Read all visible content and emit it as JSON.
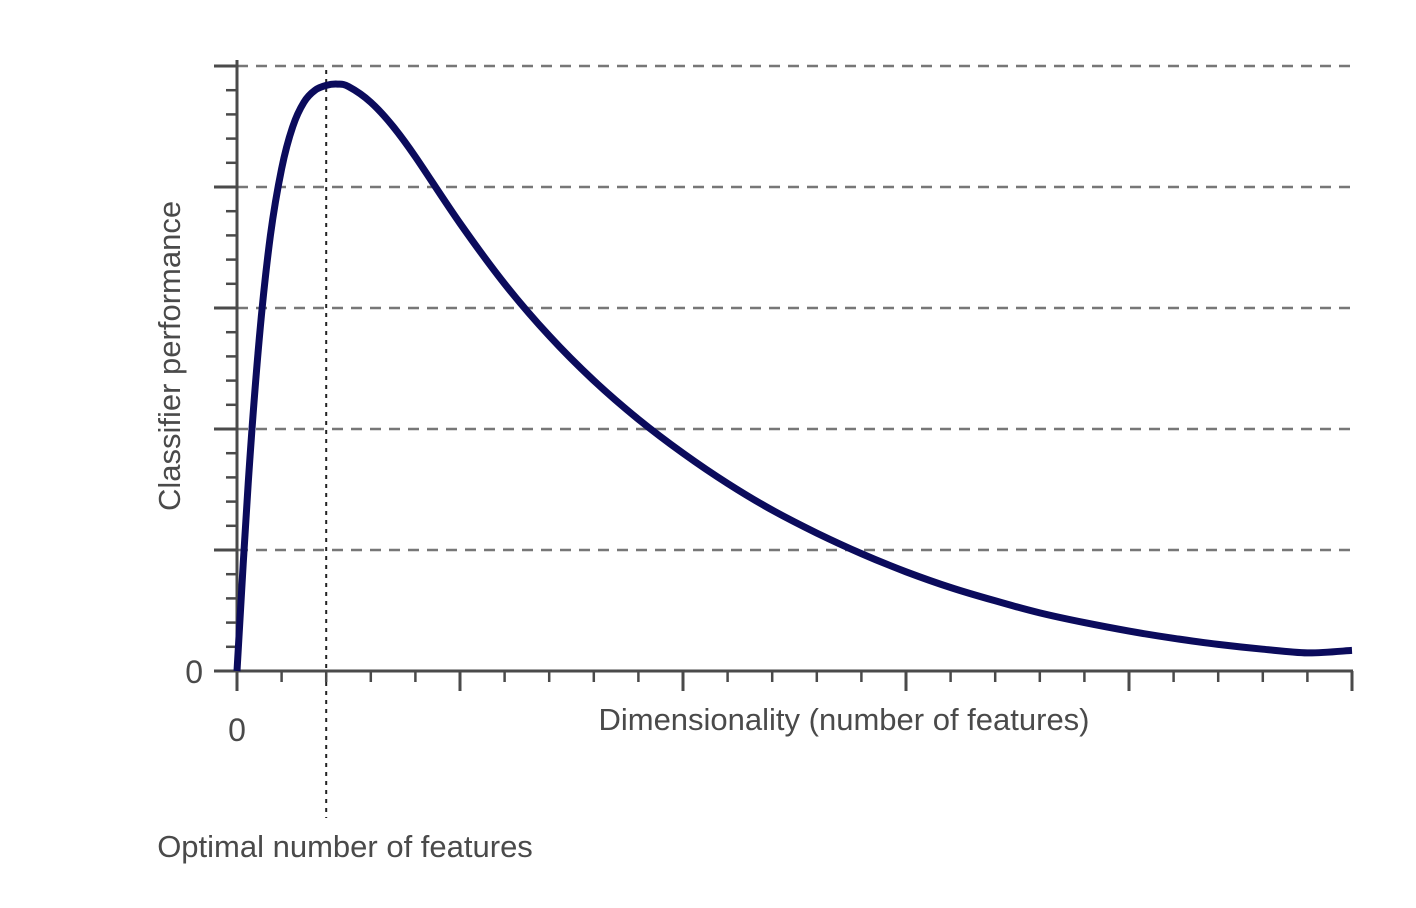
{
  "chart_data": {
    "type": "line",
    "title": "",
    "xlabel": "Dimensionality (number of features)",
    "ylabel": "Classifier performance",
    "xlim": [
      0,
      25
    ],
    "ylim": [
      0,
      5
    ],
    "x_tick_labels": [
      {
        "value": 0,
        "label": "0"
      }
    ],
    "y_tick_labels": [
      {
        "value": 0,
        "label": "0"
      }
    ],
    "x_major_ticks": [
      0,
      5,
      10,
      15,
      20,
      25
    ],
    "x_minor_step": 1,
    "y_major_ticks": [
      0,
      1,
      2,
      3,
      4,
      5
    ],
    "y_minor_step": 0.2,
    "grid": {
      "horizontal": true,
      "vertical": false,
      "style": "dashed",
      "values": [
        1,
        2,
        3,
        4,
        5
      ]
    },
    "annotation": {
      "label": "Optimal number of features",
      "x": 2,
      "style": "dotted vertical line"
    },
    "series": [
      {
        "color": "#0b0b5c",
        "x": [
          0,
          0.25,
          0.5,
          0.75,
          1,
          1.25,
          1.5,
          1.75,
          2,
          2.25,
          2.5,
          3,
          3.5,
          4,
          5,
          6,
          7,
          8,
          9,
          10,
          11,
          12,
          13,
          14,
          15,
          16,
          17,
          18,
          19,
          20,
          21,
          22,
          23,
          24,
          25
        ],
        "y": [
          0,
          1.55,
          2.75,
          3.6,
          4.15,
          4.5,
          4.7,
          4.8,
          4.84,
          4.85,
          4.83,
          4.7,
          4.5,
          4.25,
          3.7,
          3.2,
          2.77,
          2.4,
          2.08,
          1.8,
          1.55,
          1.33,
          1.14,
          0.97,
          0.82,
          0.69,
          0.58,
          0.48,
          0.4,
          0.33,
          0.27,
          0.22,
          0.18,
          0.15,
          0.17
        ]
      }
    ]
  },
  "colors": {
    "curve": "#0b0b5c",
    "axis": "#4a4a4a",
    "grid": "#777777",
    "text": "#4a4a4a"
  }
}
